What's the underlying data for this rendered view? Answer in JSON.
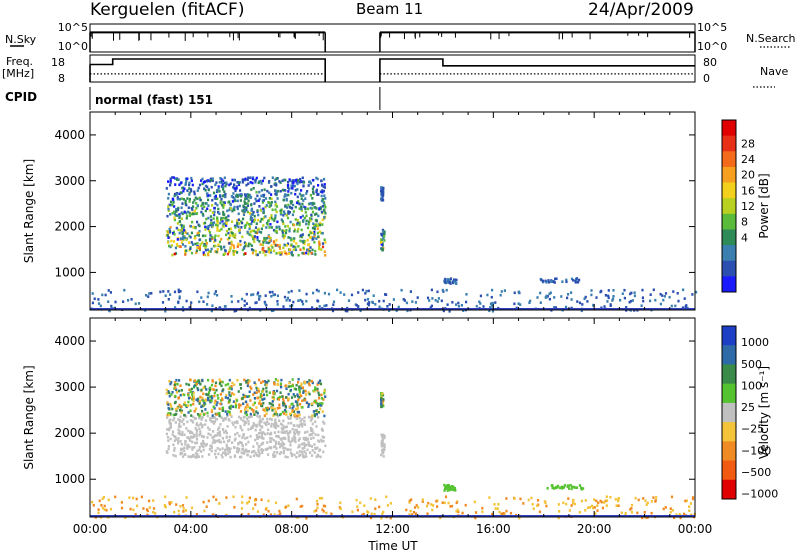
{
  "header": {
    "station": "Kerguelen (fitACF)",
    "beam": "Beam 11",
    "date": "24/Apr/2009"
  },
  "side_labels": {
    "nsky": "N.Sky",
    "nsky_ticks": [
      "10^5",
      "10^0"
    ],
    "nsearch": "N.Search",
    "nsearch_ticks": [
      "10^5",
      "10^0"
    ],
    "freq": "Freq.",
    "freq_unit": "[MHz]",
    "freq_ticks": [
      "18",
      "8"
    ],
    "nave": "Nave",
    "nave_ticks": [
      "80",
      "0"
    ],
    "cpid": "CPID",
    "cpid_value": "normal (fast) 151"
  },
  "chart_data": [
    {
      "type": "line",
      "panel": "noise",
      "series": [
        {
          "name": "N.Sky",
          "style": "solid",
          "x": [
            0.0,
            9.33,
            11.5,
            24.0
          ],
          "y": [
            3.5,
            3.5,
            3.5,
            3.5
          ]
        },
        {
          "name": "N.Search",
          "style": "dotted",
          "x": [],
          "y": []
        }
      ],
      "gap": [
        9.33,
        11.5
      ],
      "ylim_log10": [
        0,
        5
      ]
    },
    {
      "type": "line",
      "panel": "frequency_nave",
      "series": [
        {
          "name": "Freq.",
          "style": "solid",
          "x": [
            0.0,
            0.9,
            0.9,
            9.33,
            11.5,
            14.0,
            14.0,
            24.0
          ],
          "y": [
            14.5,
            14.5,
            16.5,
            16.5,
            16.5,
            16.5,
            14.0,
            14.0
          ]
        },
        {
          "name": "Nave",
          "style": "dotted",
          "x": [
            0.0,
            9.33,
            11.5,
            24.0
          ],
          "y": [
            24,
            24,
            24,
            24
          ]
        }
      ],
      "gap": [
        9.33,
        11.5
      ],
      "ylim_freq": [
        8,
        18
      ],
      "ylim_nave": [
        0,
        80
      ]
    },
    {
      "type": "heatmap",
      "panel": "power",
      "xlabel": "",
      "ylabel": "Slant Range [km]",
      "xlim": [
        0,
        24
      ],
      "ylim": [
        180,
        4500
      ],
      "yticks": [
        1000,
        2000,
        3000,
        4000
      ],
      "colorbar": {
        "label": "Power [dB]",
        "ticks": [
          "28",
          "24",
          "20",
          "16",
          "12",
          "8",
          "4"
        ],
        "colors": [
          "#1a1aff",
          "#2a4fb0",
          "#3a7fb0",
          "#2e8b57",
          "#5aba3a",
          "#b8d020",
          "#f3d01c",
          "#f7a020",
          "#f26a1a",
          "#e83018",
          "#e00000"
        ]
      },
      "regions": [
        {
          "x": [
            3.0,
            9.3
          ],
          "y": [
            1400,
            3100
          ],
          "level": "mixed"
        },
        {
          "x": [
            11.5,
            11.65
          ],
          "y": [
            1500,
            2000
          ],
          "level": "mixed"
        },
        {
          "x": [
            11.5,
            11.6
          ],
          "y": [
            2600,
            2900
          ],
          "level": "low"
        },
        {
          "x": [
            14.0,
            14.5
          ],
          "y": [
            780,
            900
          ],
          "level": "low"
        },
        {
          "x": [
            17.8,
            19.6
          ],
          "y": [
            800,
            900
          ],
          "level": "low"
        },
        {
          "x": [
            0.0,
            24.0
          ],
          "y": [
            180,
            650
          ],
          "level": "low"
        }
      ]
    },
    {
      "type": "heatmap",
      "panel": "velocity",
      "xlabel": "Time UT",
      "ylabel": "Slant Range [km]",
      "xlim": [
        0,
        24
      ],
      "ylim": [
        180,
        4500
      ],
      "xticks": [
        "00:00",
        "04:00",
        "08:00",
        "12:00",
        "16:00",
        "20:00",
        "00:00"
      ],
      "yticks": [
        1000,
        2000,
        3000,
        4000
      ],
      "colorbar": {
        "label": "Velocity",
        "unit": "[m s⁻¹]",
        "ticks": [
          "1000",
          "500",
          "100",
          "25",
          "−25",
          "−100",
          "−500",
          "−1000"
        ],
        "colors": [
          "#1d3fc6",
          "#2e6aa8",
          "#3a8a4a",
          "#55c330",
          "#c0c0c0",
          "#f3c43a",
          "#f08a22",
          "#f25a12",
          "#e00000"
        ]
      },
      "regions": [
        {
          "x": [
            3.0,
            9.3
          ],
          "y": [
            1500,
            2400
          ],
          "value": "ground_scatter"
        },
        {
          "x": [
            3.0,
            9.3
          ],
          "y": [
            2400,
            3200
          ],
          "value": "mixed"
        },
        {
          "x": [
            11.5,
            11.65
          ],
          "y": [
            1500,
            2000
          ],
          "value": "ground_scatter"
        },
        {
          "x": [
            11.5,
            11.6
          ],
          "y": [
            2600,
            2900
          ],
          "value": "mixed"
        },
        {
          "x": [
            14.0,
            14.5
          ],
          "y": [
            780,
            900
          ],
          "value": "positive"
        },
        {
          "x": [
            17.8,
            19.6
          ],
          "y": [
            800,
            900
          ],
          "value": "positive"
        },
        {
          "x": [
            0.0,
            24.0
          ],
          "y": [
            180,
            650
          ],
          "value": "negative"
        }
      ]
    }
  ],
  "colors": {
    "axis": "#000000",
    "ground_scatter": "#c0c0c0"
  }
}
